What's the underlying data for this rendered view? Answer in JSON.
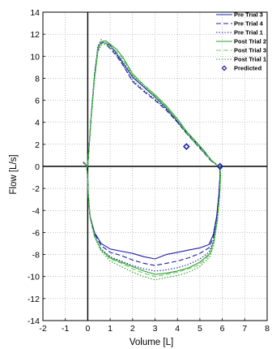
{
  "chart_data": {
    "type": "line",
    "xlabel": "Volume [L]",
    "ylabel": "Flow [L/s]",
    "xlim": [
      -2,
      8
    ],
    "ylim": [
      -14,
      14
    ],
    "xticks": [
      -2,
      -1,
      0,
      1,
      2,
      3,
      4,
      5,
      6,
      7,
      8
    ],
    "yticks": [
      -14,
      -12,
      -10,
      -8,
      -6,
      -4,
      -2,
      0,
      2,
      4,
      6,
      8,
      10,
      12,
      14
    ],
    "grid": true,
    "legend_position": "top-right",
    "series": [
      {
        "name": "Pre Trial 3",
        "color": "#1f1fa8",
        "dash": "solid",
        "points": [
          [
            -0.2,
            0.4
          ],
          [
            0.0,
            0.0
          ],
          [
            0.05,
            1.5
          ],
          [
            0.15,
            4.5
          ],
          [
            0.3,
            8.0
          ],
          [
            0.45,
            10.5
          ],
          [
            0.55,
            11.1
          ],
          [
            0.65,
            11.2
          ],
          [
            0.8,
            11.2
          ],
          [
            1.0,
            11.0
          ],
          [
            1.2,
            10.5
          ],
          [
            1.5,
            9.6
          ],
          [
            2.0,
            8.1
          ],
          [
            2.5,
            7.2
          ],
          [
            3.0,
            6.3
          ],
          [
            3.5,
            5.3
          ],
          [
            4.0,
            4.1
          ],
          [
            4.4,
            3.1
          ],
          [
            4.8,
            2.2
          ],
          [
            5.2,
            1.3
          ],
          [
            5.5,
            0.6
          ],
          [
            5.8,
            0.05
          ],
          [
            5.88,
            0.0
          ],
          [
            5.9,
            -0.8
          ],
          [
            5.85,
            -2.5
          ],
          [
            5.75,
            -4.5
          ],
          [
            5.6,
            -6.2
          ],
          [
            5.4,
            -7.1
          ],
          [
            5.0,
            -7.4
          ],
          [
            4.5,
            -7.6
          ],
          [
            4.0,
            -7.8
          ],
          [
            3.5,
            -8.0
          ],
          [
            3.0,
            -8.4
          ],
          [
            2.5,
            -8.2
          ],
          [
            2.0,
            -7.9
          ],
          [
            1.5,
            -7.7
          ],
          [
            1.0,
            -7.5
          ],
          [
            0.6,
            -7.0
          ],
          [
            0.3,
            -6.0
          ],
          [
            0.1,
            -4.5
          ],
          [
            0.02,
            -2.5
          ],
          [
            0.0,
            -1.0
          ],
          [
            -0.05,
            0.0
          ]
        ]
      },
      {
        "name": "Pre Trial 4",
        "color": "#1f1fa8",
        "dash": "dashed",
        "points": [
          [
            -0.2,
            0.3
          ],
          [
            0.0,
            0.0
          ],
          [
            0.05,
            1.5
          ],
          [
            0.15,
            4.5
          ],
          [
            0.3,
            8.3
          ],
          [
            0.45,
            10.8
          ],
          [
            0.6,
            11.3
          ],
          [
            0.75,
            11.2
          ],
          [
            1.0,
            10.7
          ],
          [
            1.3,
            10.0
          ],
          [
            1.6,
            9.1
          ],
          [
            2.0,
            7.7
          ],
          [
            2.5,
            6.8
          ],
          [
            3.0,
            6.0
          ],
          [
            3.5,
            5.1
          ],
          [
            4.0,
            4.0
          ],
          [
            4.4,
            3.0
          ],
          [
            4.8,
            2.1
          ],
          [
            5.2,
            1.2
          ],
          [
            5.5,
            0.5
          ],
          [
            5.8,
            0.05
          ],
          [
            5.88,
            0.0
          ],
          [
            5.9,
            -0.8
          ],
          [
            5.85,
            -2.5
          ],
          [
            5.75,
            -4.6
          ],
          [
            5.6,
            -6.5
          ],
          [
            5.4,
            -7.4
          ],
          [
            5.0,
            -7.9
          ],
          [
            4.5,
            -8.3
          ],
          [
            4.0,
            -8.6
          ],
          [
            3.5,
            -8.8
          ],
          [
            3.0,
            -9.0
          ],
          [
            2.5,
            -8.8
          ],
          [
            2.0,
            -8.5
          ],
          [
            1.5,
            -8.1
          ],
          [
            1.0,
            -7.8
          ],
          [
            0.6,
            -7.2
          ],
          [
            0.3,
            -6.1
          ],
          [
            0.1,
            -4.5
          ],
          [
            0.02,
            -2.5
          ],
          [
            0.0,
            -1.0
          ],
          [
            -0.05,
            0.0
          ]
        ]
      },
      {
        "name": "Pre Trial 1",
        "color": "#1f1fa8",
        "dash": "dotted",
        "points": [
          [
            -0.2,
            0.4
          ],
          [
            0.0,
            0.0
          ],
          [
            0.05,
            1.5
          ],
          [
            0.15,
            4.6
          ],
          [
            0.3,
            8.4
          ],
          [
            0.45,
            10.9
          ],
          [
            0.6,
            11.5
          ],
          [
            0.75,
            11.3
          ],
          [
            1.0,
            10.9
          ],
          [
            1.3,
            10.1
          ],
          [
            1.6,
            9.1
          ],
          [
            2.0,
            7.8
          ],
          [
            2.5,
            6.9
          ],
          [
            3.0,
            6.1
          ],
          [
            3.5,
            5.2
          ],
          [
            4.0,
            4.0
          ],
          [
            4.4,
            3.0
          ],
          [
            4.8,
            2.1
          ],
          [
            5.2,
            1.2
          ],
          [
            5.5,
            0.5
          ],
          [
            5.8,
            0.05
          ],
          [
            5.88,
            0.0
          ],
          [
            5.9,
            -0.8
          ],
          [
            5.85,
            -2.6
          ],
          [
            5.75,
            -4.8
          ],
          [
            5.6,
            -6.8
          ],
          [
            5.4,
            -7.8
          ],
          [
            5.0,
            -8.4
          ],
          [
            4.5,
            -8.9
          ],
          [
            4.0,
            -9.2
          ],
          [
            3.5,
            -9.4
          ],
          [
            3.0,
            -9.5
          ],
          [
            2.5,
            -9.3
          ],
          [
            2.0,
            -9.0
          ],
          [
            1.5,
            -8.6
          ],
          [
            1.0,
            -8.2
          ],
          [
            0.6,
            -7.5
          ],
          [
            0.3,
            -6.3
          ],
          [
            0.1,
            -4.6
          ],
          [
            0.02,
            -2.5
          ],
          [
            0.0,
            -1.0
          ],
          [
            -0.05,
            0.0
          ]
        ]
      },
      {
        "name": "Post Trial 2",
        "color": "#2aa02a",
        "dash": "solid",
        "points": [
          [
            -0.2,
            0.3
          ],
          [
            0.0,
            0.0
          ],
          [
            0.05,
            1.5
          ],
          [
            0.15,
            4.4
          ],
          [
            0.3,
            8.1
          ],
          [
            0.45,
            10.7
          ],
          [
            0.6,
            11.3
          ],
          [
            0.8,
            11.4
          ],
          [
            1.0,
            11.1
          ],
          [
            1.3,
            10.6
          ],
          [
            1.6,
            9.8
          ],
          [
            2.0,
            8.4
          ],
          [
            2.5,
            7.4
          ],
          [
            3.0,
            6.5
          ],
          [
            3.5,
            5.5
          ],
          [
            4.0,
            4.3
          ],
          [
            4.4,
            3.2
          ],
          [
            4.8,
            2.3
          ],
          [
            5.2,
            1.4
          ],
          [
            5.5,
            0.6
          ],
          [
            5.8,
            0.05
          ],
          [
            5.9,
            0.0
          ],
          [
            5.92,
            -0.8
          ],
          [
            5.88,
            -2.6
          ],
          [
            5.78,
            -4.8
          ],
          [
            5.62,
            -6.8
          ],
          [
            5.45,
            -7.9
          ],
          [
            5.0,
            -8.7
          ],
          [
            4.5,
            -9.2
          ],
          [
            4.0,
            -9.5
          ],
          [
            3.5,
            -9.7
          ],
          [
            3.0,
            -9.8
          ],
          [
            2.5,
            -9.5
          ],
          [
            2.0,
            -9.1
          ],
          [
            1.5,
            -8.7
          ],
          [
            1.0,
            -8.3
          ],
          [
            0.6,
            -7.6
          ],
          [
            0.3,
            -6.3
          ],
          [
            0.1,
            -4.6
          ],
          [
            0.02,
            -2.5
          ],
          [
            0.0,
            -1.0
          ],
          [
            -0.05,
            0.0
          ]
        ]
      },
      {
        "name": "Post Trial 3",
        "color": "#6cd06c",
        "dash": "dashed",
        "points": [
          [
            -0.2,
            0.3
          ],
          [
            0.0,
            0.0
          ],
          [
            0.05,
            1.5
          ],
          [
            0.15,
            4.3
          ],
          [
            0.3,
            7.9
          ],
          [
            0.45,
            10.6
          ],
          [
            0.6,
            11.2
          ],
          [
            0.8,
            11.2
          ],
          [
            1.0,
            10.9
          ],
          [
            1.3,
            10.4
          ],
          [
            1.6,
            9.6
          ],
          [
            2.0,
            8.3
          ],
          [
            2.5,
            7.4
          ],
          [
            3.0,
            6.4
          ],
          [
            3.5,
            5.4
          ],
          [
            4.0,
            4.2
          ],
          [
            4.4,
            3.1
          ],
          [
            4.8,
            2.2
          ],
          [
            5.2,
            1.3
          ],
          [
            5.5,
            0.6
          ],
          [
            5.8,
            0.05
          ],
          [
            5.9,
            0.0
          ],
          [
            5.92,
            -0.8
          ],
          [
            5.88,
            -2.6
          ],
          [
            5.78,
            -4.9
          ],
          [
            5.62,
            -6.9
          ],
          [
            5.45,
            -8.0
          ],
          [
            5.0,
            -8.9
          ],
          [
            4.5,
            -9.3
          ],
          [
            4.0,
            -9.6
          ],
          [
            3.5,
            -9.8
          ],
          [
            3.0,
            -10.0
          ],
          [
            2.5,
            -9.7
          ],
          [
            2.0,
            -9.3
          ],
          [
            1.5,
            -8.8
          ],
          [
            1.0,
            -8.4
          ],
          [
            0.6,
            -7.6
          ],
          [
            0.3,
            -6.3
          ],
          [
            0.1,
            -4.6
          ],
          [
            0.02,
            -2.5
          ],
          [
            0.0,
            -1.0
          ],
          [
            -0.05,
            0.0
          ]
        ]
      },
      {
        "name": "Post Trial 1",
        "color": "#2aa02a",
        "dash": "dotted",
        "points": [
          [
            -0.2,
            0.3
          ],
          [
            0.0,
            0.0
          ],
          [
            0.05,
            1.5
          ],
          [
            0.15,
            4.3
          ],
          [
            0.3,
            7.8
          ],
          [
            0.45,
            10.4
          ],
          [
            0.6,
            11.0
          ],
          [
            0.8,
            11.1
          ],
          [
            1.0,
            10.8
          ],
          [
            1.3,
            10.2
          ],
          [
            1.6,
            9.5
          ],
          [
            2.0,
            8.2
          ],
          [
            2.5,
            7.3
          ],
          [
            3.0,
            6.3
          ],
          [
            3.5,
            5.3
          ],
          [
            4.0,
            4.1
          ],
          [
            4.4,
            3.0
          ],
          [
            4.8,
            2.1
          ],
          [
            5.2,
            1.2
          ],
          [
            5.5,
            0.5
          ],
          [
            5.8,
            0.05
          ],
          [
            5.9,
            0.0
          ],
          [
            5.92,
            -0.8
          ],
          [
            5.88,
            -2.7
          ],
          [
            5.78,
            -5.0
          ],
          [
            5.62,
            -7.1
          ],
          [
            5.45,
            -8.2
          ],
          [
            5.0,
            -9.1
          ],
          [
            4.5,
            -9.6
          ],
          [
            4.0,
            -9.9
          ],
          [
            3.5,
            -10.1
          ],
          [
            3.0,
            -10.3
          ],
          [
            2.5,
            -10.0
          ],
          [
            2.0,
            -9.6
          ],
          [
            1.5,
            -9.1
          ],
          [
            1.0,
            -8.6
          ],
          [
            0.6,
            -7.7
          ],
          [
            0.3,
            -6.4
          ],
          [
            0.1,
            -4.6
          ],
          [
            0.02,
            -2.5
          ],
          [
            0.0,
            -1.0
          ],
          [
            -0.05,
            0.0
          ]
        ]
      }
    ],
    "predicted": {
      "name": "Predicted",
      "color": "#1f1fa8",
      "points": [
        [
          4.4,
          1.8
        ],
        [
          5.9,
          0.0
        ]
      ]
    }
  }
}
